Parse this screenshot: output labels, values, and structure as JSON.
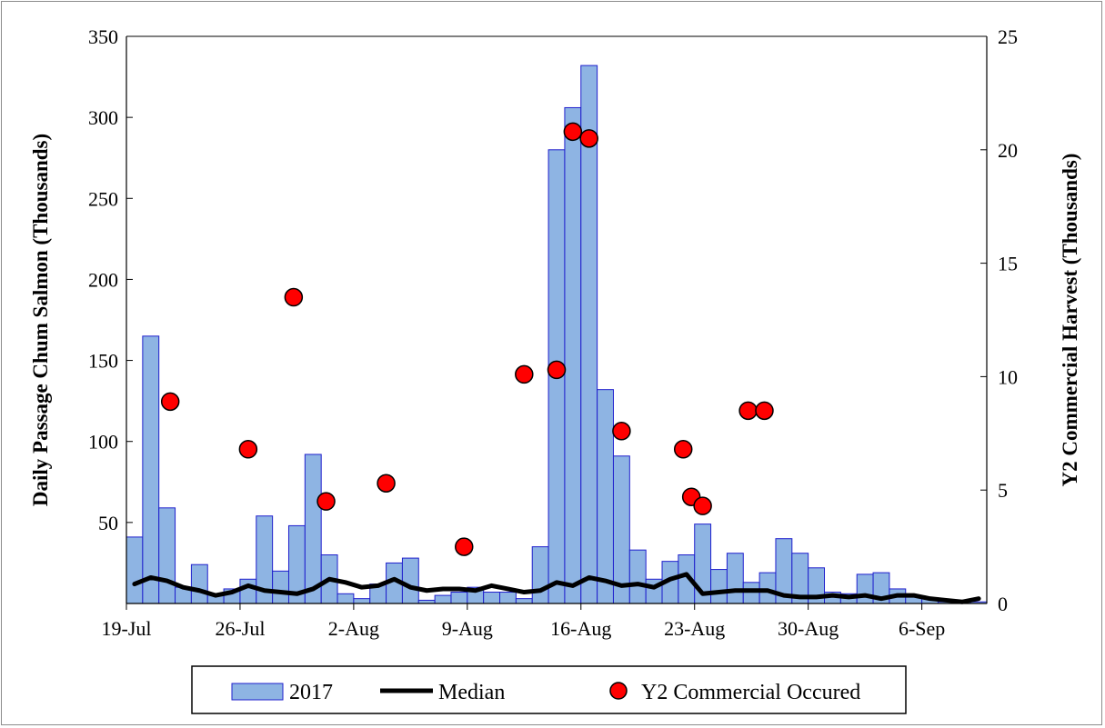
{
  "chart_data": {
    "type": "bar",
    "title": "",
    "xlabel": "",
    "ylabel": "Daily Passage Chum Salmon (Thousands)",
    "y2label": "Y2 Commercial Harvest (Thousands)",
    "ylim": [
      0,
      350
    ],
    "y2lim": [
      0,
      25
    ],
    "yticks": [
      50,
      100,
      150,
      200,
      250,
      300,
      350
    ],
    "y2ticks": [
      0,
      5,
      10,
      15,
      20,
      25
    ],
    "xtick_labels": [
      "19-Jul",
      "26-Jul",
      "2-Aug",
      "9-Aug",
      "16-Aug",
      "23-Aug",
      "30-Aug",
      "6-Sep"
    ],
    "xtick_day_offsets": [
      0,
      7,
      14,
      21,
      28,
      35,
      42,
      49
    ],
    "days": 53,
    "grid": false,
    "legend_position": "bottom",
    "series": [
      {
        "name": "2017",
        "type": "bar",
        "axis": "left",
        "color": "#8eb4e3",
        "edge_color": "#1f1fcc",
        "values": [
          41,
          165,
          59,
          10,
          24,
          6,
          9,
          15,
          54,
          20,
          48,
          92,
          30,
          6,
          3,
          12,
          25,
          28,
          2,
          5,
          7,
          10,
          7,
          7,
          3,
          35,
          280,
          306,
          332,
          132,
          91,
          33,
          15,
          26,
          30,
          49,
          21,
          31,
          13,
          19,
          40,
          31,
          22,
          7,
          6,
          18,
          19,
          9,
          5,
          3,
          1,
          1,
          1
        ]
      },
      {
        "name": "Median",
        "type": "line",
        "axis": "left",
        "color": "#000000",
        "values": [
          12,
          16,
          14,
          10,
          8,
          5,
          7,
          11,
          8,
          7,
          6,
          9,
          15,
          13,
          10,
          11,
          15,
          10,
          8,
          9,
          9,
          8,
          11,
          9,
          7,
          8,
          13,
          11,
          16,
          14,
          11,
          12,
          10,
          15,
          18,
          6,
          7,
          8,
          8,
          8,
          5,
          4,
          4,
          5,
          4,
          5,
          3,
          5,
          5,
          3,
          2,
          1,
          3
        ]
      },
      {
        "name": "Y2 Commercial Occured",
        "type": "scatter",
        "axis": "right",
        "color": "#ff0000",
        "edge_color": "#000000",
        "x": [
          2.2,
          7.0,
          9.8,
          11.8,
          15.5,
          20.3,
          24.0,
          26.0,
          27.0,
          28.0,
          30.0,
          33.8,
          34.3,
          35.0,
          37.8,
          38.8
        ],
        "y": [
          8.9,
          6.8,
          13.5,
          4.5,
          5.3,
          2.5,
          10.1,
          10.3,
          20.8,
          20.5,
          7.6,
          6.8,
          4.7,
          4.3,
          8.5,
          8.5
        ]
      }
    ]
  }
}
